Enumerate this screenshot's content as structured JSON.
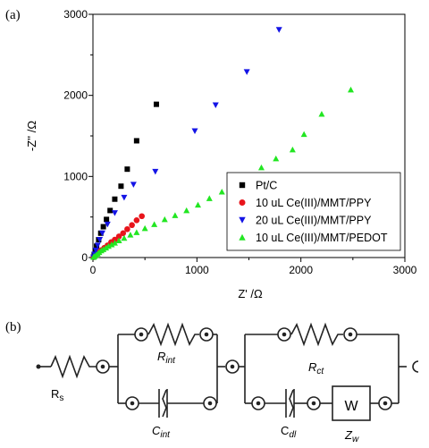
{
  "figure": {
    "panel_a_label": "(a)",
    "panel_b_label": "(b)"
  },
  "chart_data": {
    "type": "scatter",
    "xlabel": "Z' /Ω",
    "ylabel": "-Z'' /Ω",
    "xlim": [
      0,
      3000
    ],
    "ylim": [
      0,
      3000
    ],
    "x_ticks": [
      0,
      1000,
      2000,
      3000
    ],
    "y_ticks": [
      0,
      1000,
      2000,
      3000
    ],
    "minor_x_ticks": [
      500,
      1500,
      2500
    ],
    "minor_y_ticks": [
      500,
      1500,
      2500
    ],
    "grid": false,
    "legend_position": "bottom-right",
    "series": [
      {
        "name": "Pt/C",
        "marker": "square",
        "color": "#000000",
        "points": [
          [
            5,
            5
          ],
          [
            12,
            35
          ],
          [
            22,
            80
          ],
          [
            35,
            140
          ],
          [
            55,
            220
          ],
          [
            75,
            300
          ],
          [
            100,
            380
          ],
          [
            130,
            470
          ],
          [
            165,
            580
          ],
          [
            210,
            720
          ],
          [
            270,
            880
          ],
          [
            330,
            1090
          ],
          [
            420,
            1440
          ],
          [
            610,
            1890
          ]
        ]
      },
      {
        "name": "10 uL Ce(III)/MMT/PPY",
        "marker": "circle",
        "color": "#e8141b",
        "points": [
          [
            8,
            5
          ],
          [
            20,
            20
          ],
          [
            35,
            40
          ],
          [
            55,
            65
          ],
          [
            80,
            90
          ],
          [
            110,
            120
          ],
          [
            140,
            150
          ],
          [
            175,
            190
          ],
          [
            210,
            220
          ],
          [
            250,
            260
          ],
          [
            290,
            300
          ],
          [
            330,
            350
          ],
          [
            375,
            400
          ],
          [
            420,
            460
          ],
          [
            470,
            510
          ]
        ]
      },
      {
        "name": "20 uL Ce(III)/MMT/PPY",
        "marker": "triangle-down",
        "color": "#1414e6",
        "points": [
          [
            5,
            5
          ],
          [
            15,
            40
          ],
          [
            28,
            90
          ],
          [
            45,
            150
          ],
          [
            65,
            220
          ],
          [
            90,
            300
          ],
          [
            140,
            410
          ],
          [
            210,
            550
          ],
          [
            300,
            740
          ],
          [
            390,
            900
          ],
          [
            600,
            1060
          ],
          [
            980,
            1560
          ],
          [
            1180,
            1880
          ],
          [
            1480,
            2290
          ],
          [
            1790,
            2810
          ]
        ]
      },
      {
        "name": "10 uL Ce(III)/MMT/PEDOT",
        "marker": "triangle-up",
        "color": "#22e622",
        "points": [
          [
            5,
            5
          ],
          [
            15,
            15
          ],
          [
            30,
            30
          ],
          [
            45,
            45
          ],
          [
            60,
            65
          ],
          [
            80,
            85
          ],
          [
            100,
            100
          ],
          [
            125,
            120
          ],
          [
            150,
            140
          ],
          [
            180,
            160
          ],
          [
            210,
            180
          ],
          [
            250,
            210
          ],
          [
            300,
            240
          ],
          [
            360,
            280
          ],
          [
            420,
            310
          ],
          [
            500,
            360
          ],
          [
            590,
            410
          ],
          [
            690,
            470
          ],
          [
            790,
            520
          ],
          [
            900,
            580
          ],
          [
            1010,
            650
          ],
          [
            1120,
            730
          ],
          [
            1240,
            810
          ],
          [
            1360,
            900
          ],
          [
            1490,
            1000
          ],
          [
            1620,
            1110
          ],
          [
            1760,
            1220
          ],
          [
            1920,
            1330
          ],
          [
            2030,
            1520
          ],
          [
            2200,
            1770
          ],
          [
            2480,
            2070
          ]
        ]
      }
    ]
  },
  "circuit": {
    "rs_label": "R",
    "rs_sub": "s",
    "rint_label": "R",
    "rint_sub": "int",
    "cint_label": "C",
    "cint_sub": "int",
    "rct_label": "R",
    "rct_sub": "ct",
    "cdl_label": "C",
    "cdl_sub": "dl",
    "w_box_label": "W",
    "zw_label": "Z",
    "zw_sub": "w"
  }
}
